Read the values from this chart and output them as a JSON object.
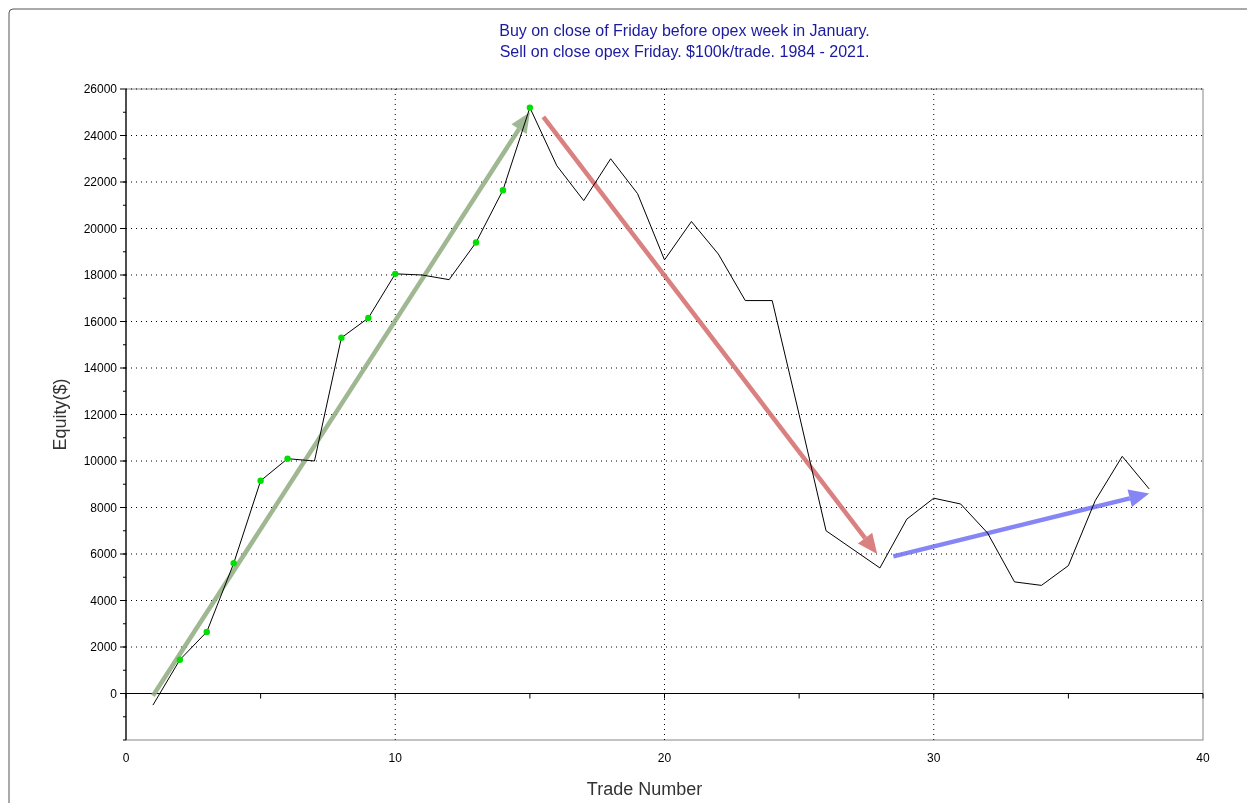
{
  "chart_data": {
    "type": "line",
    "title": "Buy on close of Friday before opex week in January.\nSell on close opex Friday. $100k/trade. 1984 - 2021.",
    "xlabel": "Trade Number",
    "ylabel": "Equity($)",
    "xlim": [
      0,
      40
    ],
    "xticks": [
      0,
      {
        "value": 5,
        "label": null
      },
      10,
      {
        "value": 15,
        "label": null
      },
      20,
      {
        "value": 25,
        "label": null
      },
      30,
      {
        "value": 35,
        "label": null
      },
      40
    ],
    "ylim": [
      -2000,
      26000
    ],
    "yticks": [
      0,
      2000,
      4000,
      6000,
      8000,
      10000,
      12000,
      14000,
      16000,
      18000,
      20000,
      22000,
      24000,
      26000
    ],
    "grid": true,
    "series": [
      {
        "color": "#000000",
        "marker": "none",
        "x": [
          1,
          2,
          3,
          4,
          5,
          6,
          7,
          8,
          9,
          10,
          11,
          12,
          13,
          14,
          15,
          16,
          17,
          18,
          19,
          20,
          21,
          22,
          23,
          24,
          25,
          26,
          27,
          28,
          29,
          30,
          31,
          32,
          33,
          34,
          35,
          36,
          37,
          38
        ],
        "values": [
          -500,
          1450,
          2650,
          5600,
          9150,
          10100,
          10000,
          15300,
          16150,
          18050,
          18000,
          17800,
          19400,
          21650,
          25200,
          22700,
          21200,
          23000,
          21500,
          18650,
          20300,
          18900,
          16900,
          16900,
          12000,
          7000,
          6200,
          5400,
          7500,
          8400,
          8150,
          6900,
          4800,
          4650,
          5500,
          8300,
          10200,
          8800
        ]
      },
      {
        "type": "scatter",
        "color": "#00e000",
        "marker": "circle",
        "x": [
          2,
          3,
          4,
          5,
          6,
          8,
          9,
          10,
          13,
          14,
          15
        ],
        "values": [
          1450,
          2650,
          5600,
          9150,
          10100,
          15300,
          16150,
          18050,
          19400,
          21650,
          25200
        ]
      }
    ]
  }
}
